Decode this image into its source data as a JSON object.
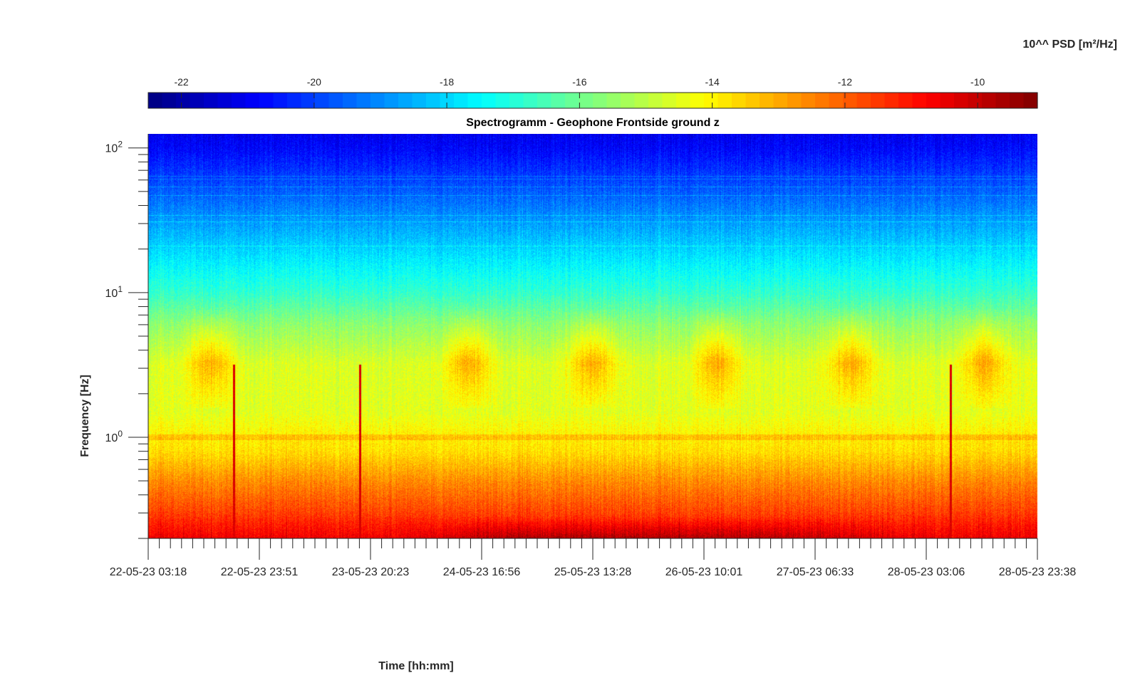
{
  "chart_data": {
    "type": "heatmap",
    "title": "Spectrogramm - Geophone Frontside ground z",
    "xlabel": "Time [hh:mm]",
    "ylabel": "Frequency [Hz]",
    "colorbar_label": "10^^ PSD [m²/Hz]",
    "colormap": "jet",
    "y_scale": "log",
    "ylim": [
      0.2,
      125
    ],
    "clim": [
      -22.5,
      -9.1
    ],
    "colorbar_ticks": [
      -22,
      -20,
      -18,
      -16,
      -14,
      -12,
      -10
    ],
    "x_tick_labels": [
      "22-05-23 03:18",
      "22-05-23 23:51",
      "23-05-23 20:23",
      "24-05-23 16:56",
      "25-05-23 13:28",
      "26-05-23 10:01",
      "27-05-23 06:33",
      "28-05-23 03:06",
      "28-05-23 23:38"
    ],
    "y_tick_labels": [
      {
        "value": 1,
        "base": "10",
        "exp": "0"
      },
      {
        "value": 10,
        "base": "10",
        "exp": "1"
      },
      {
        "value": 100,
        "base": "10",
        "exp": "2"
      }
    ],
    "psd_profile": [
      {
        "freq": 0.2,
        "psd": -10.6
      },
      {
        "freq": 0.3,
        "psd": -11.6
      },
      {
        "freq": 0.5,
        "psd": -12.6
      },
      {
        "freq": 0.8,
        "psd": -13.7
      },
      {
        "freq": 1.0,
        "psd": -13.9
      },
      {
        "freq": 1.5,
        "psd": -14.5
      },
      {
        "freq": 3.2,
        "psd": -14.6
      },
      {
        "freq": 6,
        "psd": -15.6
      },
      {
        "freq": 10,
        "psd": -16.8
      },
      {
        "freq": 20,
        "psd": -18.0
      },
      {
        "freq": 50,
        "psd": -19.6
      },
      {
        "freq": 100,
        "psd": -20.8
      },
      {
        "freq": 125,
        "psd": -21.0
      }
    ],
    "day_activity_center_fractions": [
      0.07,
      0.36,
      0.5,
      0.64,
      0.79,
      0.94
    ],
    "transient_spikes_fractions": [
      0.096,
      0.238,
      0.902
    ]
  }
}
